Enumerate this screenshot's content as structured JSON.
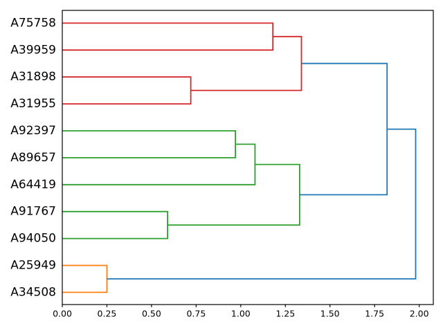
{
  "figure": {
    "background": "#ffffff"
  },
  "chart_data": {
    "type": "dendrogram",
    "orientation": "horizontal-left-to-right",
    "title": "",
    "xlabel": "",
    "ylabel": "",
    "grid": false,
    "leaves": [
      "A75758",
      "A39959",
      "A31898",
      "A31955",
      "A92397",
      "A89657",
      "A64419",
      "A91767",
      "A94050",
      "A25949",
      "A34508"
    ],
    "merges": [
      {
        "id": "M0",
        "a": "A25949",
        "b": "A34508",
        "dist": 0.25,
        "color_key": "orange"
      },
      {
        "id": "M1",
        "a": "A91767",
        "b": "A94050",
        "dist": 0.59,
        "color_key": "green"
      },
      {
        "id": "M2",
        "a": "A31898",
        "b": "A31955",
        "dist": 0.72,
        "color_key": "red"
      },
      {
        "id": "M3",
        "a": "A92397",
        "b": "A89657",
        "dist": 0.97,
        "color_key": "green"
      },
      {
        "id": "M4",
        "a": "M3",
        "b": "A64419",
        "dist": 1.08,
        "color_key": "green"
      },
      {
        "id": "M5",
        "a": "A75758",
        "b": "A39959",
        "dist": 1.18,
        "color_key": "red"
      },
      {
        "id": "M6",
        "a": "M5",
        "b": "M2",
        "dist": 1.34,
        "color_key": "red"
      },
      {
        "id": "M7",
        "a": "M4",
        "b": "M1",
        "dist": 1.33,
        "color_key": "green"
      },
      {
        "id": "M8",
        "a": "M6",
        "b": "M7",
        "dist": 1.82,
        "color_key": "blue"
      },
      {
        "id": "M9",
        "a": "M8",
        "b": "M0",
        "dist": 1.98,
        "color_key": "blue"
      }
    ],
    "x_axis": {
      "tick_labels": [
        "0.00",
        "0.25",
        "0.50",
        "0.75",
        "1.00",
        "1.25",
        "1.50",
        "1.75",
        "2.00"
      ],
      "tick_values": [
        0,
        0.25,
        0.5,
        0.75,
        1.0,
        1.25,
        1.5,
        1.75,
        2.0
      ],
      "range": [
        0,
        2.079
      ]
    },
    "colors": {
      "red": "#d62728",
      "green": "#2ca02c",
      "orange": "#ff7f0e",
      "blue": "#1f77b4",
      "axis": "#000000",
      "background": "#ffffff"
    }
  }
}
